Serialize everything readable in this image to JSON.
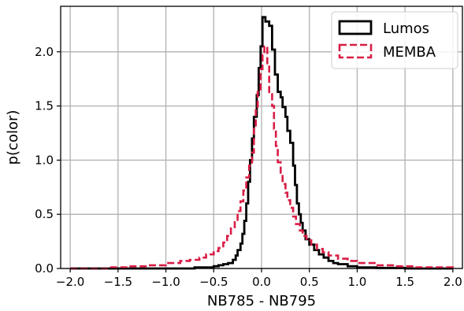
{
  "chart_data": {
    "type": "histogram",
    "xlabel": "NB785 - NB795",
    "ylabel": "p(color)",
    "xlim": [
      -2.1,
      2.1
    ],
    "ylim": [
      0.0,
      2.42
    ],
    "xticks": [
      -2.0,
      -1.5,
      -1.0,
      -0.5,
      0.0,
      0.5,
      1.0,
      1.5,
      2.0
    ],
    "xtick_labels": [
      "−2.0",
      "−1.5",
      "−1.0",
      "−0.5",
      "0.0",
      "0.5",
      "1.0",
      "1.5",
      "2.0"
    ],
    "yticks": [
      0.0,
      0.5,
      1.0,
      1.5,
      2.0
    ],
    "ytick_labels": [
      "0.0",
      "0.5",
      "1.0",
      "1.5",
      "2.0"
    ],
    "grid": true,
    "legend_position": "top-right",
    "series": [
      {
        "name": "Lumos",
        "color": "#000000",
        "style": "solid-step",
        "points": [
          [
            -2.0,
            0.0
          ],
          [
            -1.0,
            0.0
          ],
          [
            -0.7,
            0.01
          ],
          [
            -0.5,
            0.02
          ],
          [
            -0.45,
            0.03
          ],
          [
            -0.4,
            0.04
          ],
          [
            -0.35,
            0.05
          ],
          [
            -0.3,
            0.08
          ],
          [
            -0.27,
            0.12
          ],
          [
            -0.25,
            0.17
          ],
          [
            -0.22,
            0.23
          ],
          [
            -0.2,
            0.32
          ],
          [
            -0.18,
            0.44
          ],
          [
            -0.16,
            0.6
          ],
          [
            -0.14,
            0.8
          ],
          [
            -0.12,
            1.0
          ],
          [
            -0.1,
            1.2
          ],
          [
            -0.08,
            1.4
          ],
          [
            -0.05,
            1.6
          ],
          [
            -0.03,
            1.85
          ],
          [
            -0.01,
            2.05
          ],
          [
            0.01,
            2.32
          ],
          [
            0.04,
            2.28
          ],
          [
            0.08,
            2.24
          ],
          [
            0.11,
            2.02
          ],
          [
            0.14,
            1.79
          ],
          [
            0.17,
            1.63
          ],
          [
            0.2,
            1.58
          ],
          [
            0.22,
            1.49
          ],
          [
            0.25,
            1.4
          ],
          [
            0.27,
            1.27
          ],
          [
            0.3,
            1.16
          ],
          [
            0.33,
            0.95
          ],
          [
            0.35,
            0.77
          ],
          [
            0.37,
            0.6
          ],
          [
            0.39,
            0.5
          ],
          [
            0.41,
            0.42
          ],
          [
            0.43,
            0.35
          ],
          [
            0.46,
            0.27
          ],
          [
            0.5,
            0.22
          ],
          [
            0.55,
            0.17
          ],
          [
            0.6,
            0.13
          ],
          [
            0.65,
            0.1
          ],
          [
            0.7,
            0.07
          ],
          [
            0.75,
            0.05
          ],
          [
            0.8,
            0.04
          ],
          [
            0.9,
            0.02
          ],
          [
            1.0,
            0.01
          ],
          [
            1.2,
            0.005
          ],
          [
            1.5,
            0.0
          ],
          [
            2.0,
            0.0
          ]
        ]
      },
      {
        "name": "MEMBA",
        "color": "#d81d45",
        "style": "dashed-step",
        "points": [
          [
            -2.0,
            0.0
          ],
          [
            -1.6,
            0.01
          ],
          [
            -1.4,
            0.02
          ],
          [
            -1.2,
            0.03
          ],
          [
            -1.0,
            0.05
          ],
          [
            -0.85,
            0.07
          ],
          [
            -0.75,
            0.08
          ],
          [
            -0.65,
            0.1
          ],
          [
            -0.58,
            0.13
          ],
          [
            -0.5,
            0.16
          ],
          [
            -0.45,
            0.19
          ],
          [
            -0.4,
            0.24
          ],
          [
            -0.36,
            0.3
          ],
          [
            -0.32,
            0.37
          ],
          [
            -0.28,
            0.44
          ],
          [
            -0.25,
            0.53
          ],
          [
            -0.22,
            0.62
          ],
          [
            -0.19,
            0.72
          ],
          [
            -0.16,
            0.84
          ],
          [
            -0.13,
            0.95
          ],
          [
            -0.1,
            1.07
          ],
          [
            -0.08,
            1.3
          ],
          [
            -0.06,
            1.46
          ],
          [
            -0.04,
            1.63
          ],
          [
            -0.01,
            1.84
          ],
          [
            0.01,
            1.97
          ],
          [
            0.03,
            2.05
          ],
          [
            0.06,
            1.88
          ],
          [
            0.08,
            1.61
          ],
          [
            0.11,
            1.5
          ],
          [
            0.13,
            1.29
          ],
          [
            0.15,
            1.13
          ],
          [
            0.17,
            0.98
          ],
          [
            0.2,
            0.87
          ],
          [
            0.22,
            0.78
          ],
          [
            0.25,
            0.7
          ],
          [
            0.27,
            0.63
          ],
          [
            0.3,
            0.56
          ],
          [
            0.33,
            0.48
          ],
          [
            0.36,
            0.41
          ],
          [
            0.4,
            0.35
          ],
          [
            0.43,
            0.3
          ],
          [
            0.47,
            0.26
          ],
          [
            0.52,
            0.22
          ],
          [
            0.58,
            0.18
          ],
          [
            0.64,
            0.15
          ],
          [
            0.7,
            0.12
          ],
          [
            0.8,
            0.09
          ],
          [
            0.9,
            0.07
          ],
          [
            1.0,
            0.05
          ],
          [
            1.2,
            0.03
          ],
          [
            1.4,
            0.02
          ],
          [
            1.6,
            0.01
          ],
          [
            2.0,
            0.0
          ]
        ]
      }
    ]
  }
}
